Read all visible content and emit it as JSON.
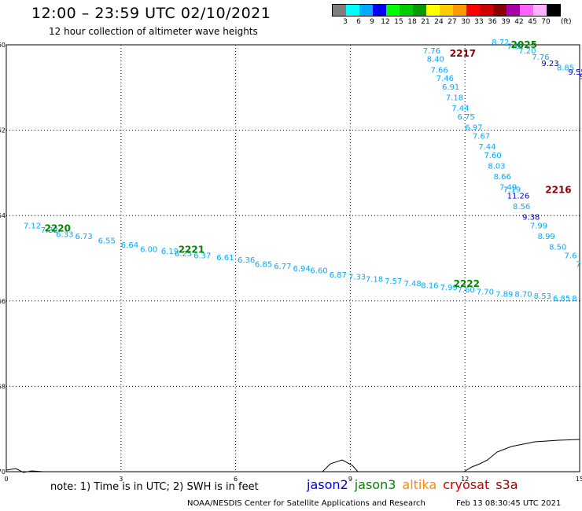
{
  "header": {
    "title": "12:00 – 23:59 UTC 02/10/2021",
    "subtitle": "12 hour collection of altimeter wave heights"
  },
  "legend": {
    "colors": [
      "#7f7f7f",
      "#00ffff",
      "#00aaff",
      "#0000ff",
      "#00ff00",
      "#00cc00",
      "#009900",
      "#ffff00",
      "#ffcc00",
      "#ff9900",
      "#ff0000",
      "#cc0000",
      "#880000",
      "#aa00aa",
      "#ff66ff",
      "#ffb2ff",
      "#000000"
    ],
    "labels": [
      "3",
      "6",
      "9",
      "12",
      "15",
      "18",
      "21",
      "24",
      "27",
      "30",
      "33",
      "36",
      "39",
      "42",
      "45",
      "70"
    ],
    "unit": "(ft)"
  },
  "footer": {
    "note": "note: 1) Time is in UTC; 2) SWH is in feet",
    "missions": [
      {
        "name": "jason2",
        "color": "#0000cc"
      },
      {
        "name": "jason3",
        "color": "#008800"
      },
      {
        "name": "altika",
        "color": "#ff8800"
      },
      {
        "name": "cryosat",
        "color": "#cc0000"
      },
      {
        "name": "s3a",
        "color": "#990000"
      }
    ],
    "credit": "NOAA/NESDIS Center for Satellite Applications and Research",
    "timestamp": "Feb 13 08:30:45 UTC 2021"
  },
  "map": {
    "lon_range": [
      0,
      15
    ],
    "lat_range": [
      -70,
      -60
    ],
    "x_ticks": [
      "0",
      "3",
      "6",
      "9",
      "12",
      "15"
    ],
    "y_ticks": [
      "-60",
      "-62",
      "-64",
      "-66",
      "-68",
      "-70"
    ],
    "track_labels": [
      {
        "text": "2025",
        "color": "#008800",
        "lon": 13.2,
        "lat": -60.0
      },
      {
        "text": "2217",
        "color": "#880000",
        "lon": 11.6,
        "lat": -60.2
      },
      {
        "text": "2216",
        "color": "#880000",
        "lon": 14.1,
        "lat": -63.4
      },
      {
        "text": "2220",
        "color": "#008800",
        "lon": 1.0,
        "lat": -64.3
      },
      {
        "text": "2221",
        "color": "#008800",
        "lon": 4.5,
        "lat": -64.8
      },
      {
        "text": "2222",
        "color": "#008800",
        "lon": 11.7,
        "lat": -65.6
      }
    ],
    "wave_points": [
      {
        "v": "8.72",
        "lon": 12.7,
        "lat": -60.0,
        "c": "#00aaff"
      },
      {
        "v": "7.57",
        "lon": 13.1,
        "lat": -60.1,
        "c": "#00aaff"
      },
      {
        "v": "7.20",
        "lon": 13.4,
        "lat": -60.2,
        "c": "#00aaff"
      },
      {
        "v": "7.76",
        "lon": 13.75,
        "lat": -60.35,
        "c": "#00aaff"
      },
      {
        "v": "9.23",
        "lon": 14.0,
        "lat": -60.5,
        "c": "#0000cc"
      },
      {
        "v": "8.85",
        "lon": 14.4,
        "lat": -60.6,
        "c": "#00aaff"
      },
      {
        "v": "9.55",
        "lon": 14.7,
        "lat": -60.7,
        "c": "#0000cc"
      },
      {
        "v": "9",
        "lon": 15.0,
        "lat": -60.8,
        "c": "#0000cc"
      },
      {
        "v": "7.76",
        "lon": 10.9,
        "lat": -60.2,
        "c": "#00aaff"
      },
      {
        "v": "8.40",
        "lon": 11.0,
        "lat": -60.4,
        "c": "#00aaff"
      },
      {
        "v": "7.66",
        "lon": 11.1,
        "lat": -60.65,
        "c": "#00aaff"
      },
      {
        "v": "7.46",
        "lon": 11.25,
        "lat": -60.85,
        "c": "#00aaff"
      },
      {
        "v": "6.91",
        "lon": 11.4,
        "lat": -61.05,
        "c": "#00aaff"
      },
      {
        "v": "7.18",
        "lon": 11.5,
        "lat": -61.3,
        "c": "#00aaff"
      },
      {
        "v": "7.44",
        "lon": 11.65,
        "lat": -61.55,
        "c": "#00aaff"
      },
      {
        "v": "6.75",
        "lon": 11.8,
        "lat": -61.75,
        "c": "#00aaff"
      },
      {
        "v": "6.97",
        "lon": 12.0,
        "lat": -62.0,
        "c": "#00aaff"
      },
      {
        "v": "7.67",
        "lon": 12.2,
        "lat": -62.2,
        "c": "#00aaff"
      },
      {
        "v": "7.44",
        "lon": 12.35,
        "lat": -62.45,
        "c": "#00aaff"
      },
      {
        "v": "7.60",
        "lon": 12.5,
        "lat": -62.65,
        "c": "#00aaff"
      },
      {
        "v": "8.03",
        "lon": 12.6,
        "lat": -62.9,
        "c": "#00aaff"
      },
      {
        "v": "8.66",
        "lon": 12.75,
        "lat": -63.15,
        "c": "#00aaff"
      },
      {
        "v": "7.49",
        "lon": 12.9,
        "lat": -63.4,
        "c": "#00aaff"
      },
      {
        "v": "7.19",
        "lon": 13.0,
        "lat": -63.45,
        "c": "#00aaff"
      },
      {
        "v": "11.26",
        "lon": 13.1,
        "lat": -63.6,
        "c": "#0000cc"
      },
      {
        "v": "8.56",
        "lon": 13.25,
        "lat": -63.85,
        "c": "#00aaff"
      },
      {
        "v": "9.38",
        "lon": 13.5,
        "lat": -64.1,
        "c": "#0000cc"
      },
      {
        "v": "7.99",
        "lon": 13.7,
        "lat": -64.3,
        "c": "#00aaff"
      },
      {
        "v": "8.99",
        "lon": 13.9,
        "lat": -64.55,
        "c": "#00aaff"
      },
      {
        "v": "8.50",
        "lon": 14.2,
        "lat": -64.8,
        "c": "#00aaff"
      },
      {
        "v": "7.6",
        "lon": 14.6,
        "lat": -65.0,
        "c": "#00aaff"
      },
      {
        "v": "7",
        "lon": 14.9,
        "lat": -65.2,
        "c": "#00aaff"
      },
      {
        "v": "7.12",
        "lon": 0.45,
        "lat": -64.3,
        "c": "#00aaff"
      },
      {
        "v": "7.32",
        "lon": 0.9,
        "lat": -64.4,
        "c": "#00aaff"
      },
      {
        "v": "6.33",
        "lon": 1.3,
        "lat": -64.5,
        "c": "#00aaff"
      },
      {
        "v": "6.73",
        "lon": 1.8,
        "lat": -64.55,
        "c": "#00aaff"
      },
      {
        "v": "6.55",
        "lon": 2.4,
        "lat": -64.65,
        "c": "#00aaff"
      },
      {
        "v": "6.64",
        "lon": 3.0,
        "lat": -64.75,
        "c": "#00aaff"
      },
      {
        "v": "6.00",
        "lon": 3.5,
        "lat": -64.85,
        "c": "#00aaff"
      },
      {
        "v": "6.19",
        "lon": 4.05,
        "lat": -64.9,
        "c": "#00aaff"
      },
      {
        "v": "6.25",
        "lon": 4.4,
        "lat": -64.95,
        "c": "#00aaff"
      },
      {
        "v": "6.37",
        "lon": 4.9,
        "lat": -65.0,
        "c": "#00aaff"
      },
      {
        "v": "6.61",
        "lon": 5.5,
        "lat": -65.05,
        "c": "#00aaff"
      },
      {
        "v": "6.36",
        "lon": 6.05,
        "lat": -65.1,
        "c": "#00aaff"
      },
      {
        "v": "6.85",
        "lon": 6.5,
        "lat": -65.2,
        "c": "#00aaff"
      },
      {
        "v": "6.77",
        "lon": 7.0,
        "lat": -65.25,
        "c": "#00aaff"
      },
      {
        "v": "6.94",
        "lon": 7.5,
        "lat": -65.3,
        "c": "#00aaff"
      },
      {
        "v": "6.60",
        "lon": 7.95,
        "lat": -65.35,
        "c": "#00aaff"
      },
      {
        "v": "6.87",
        "lon": 8.45,
        "lat": -65.45,
        "c": "#00aaff"
      },
      {
        "v": "7.33",
        "lon": 8.95,
        "lat": -65.5,
        "c": "#00aaff"
      },
      {
        "v": "7.18",
        "lon": 9.4,
        "lat": -65.55,
        "c": "#00aaff"
      },
      {
        "v": "7.57",
        "lon": 9.9,
        "lat": -65.6,
        "c": "#00aaff"
      },
      {
        "v": "7.48",
        "lon": 10.4,
        "lat": -65.65,
        "c": "#00aaff"
      },
      {
        "v": "8.16",
        "lon": 10.85,
        "lat": -65.7,
        "c": "#00aaff"
      },
      {
        "v": "7.99",
        "lon": 11.35,
        "lat": -65.75,
        "c": "#00aaff"
      },
      {
        "v": "7.60",
        "lon": 11.8,
        "lat": -65.8,
        "c": "#00aaff"
      },
      {
        "v": "7.70",
        "lon": 12.3,
        "lat": -65.85,
        "c": "#00aaff"
      },
      {
        "v": "7.89",
        "lon": 12.8,
        "lat": -65.9,
        "c": "#00aaff"
      },
      {
        "v": "8.70",
        "lon": 13.3,
        "lat": -65.9,
        "c": "#00aaff"
      },
      {
        "v": "8.53",
        "lon": 13.8,
        "lat": -65.95,
        "c": "#00aaff"
      },
      {
        "v": "6.85",
        "lon": 14.3,
        "lat": -66.0,
        "c": "#00aaff"
      },
      {
        "v": "8",
        "lon": 14.8,
        "lat": -66.0,
        "c": "#00aaff"
      }
    ]
  }
}
